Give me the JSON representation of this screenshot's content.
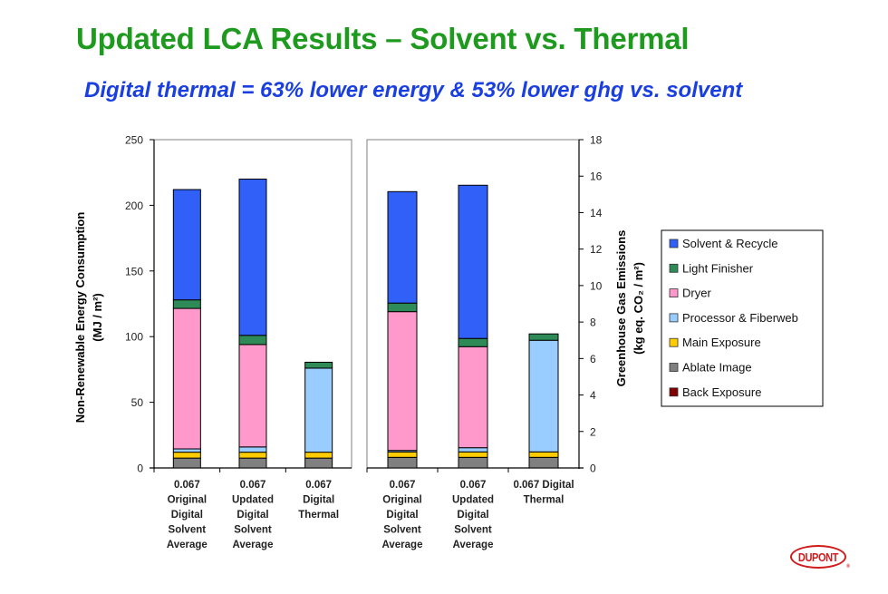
{
  "slide": {
    "title": "Updated LCA Results – Solvent vs. Thermal",
    "subtitle": "Digital thermal = 63% lower energy & 53% lower ghg vs. solvent",
    "logo_text": "DUPONT",
    "logo_mark": "®"
  },
  "colors": {
    "title": "#1e9a1e",
    "subtitle": "#1a3fe0",
    "logo": "#d01c1c"
  },
  "legend": {
    "position": "right",
    "items": [
      {
        "name": "Solvent & Recycle",
        "color": "#3060f8"
      },
      {
        "name": "Light Finisher",
        "color": "#2e8b57"
      },
      {
        "name": "Dryer",
        "color": "#ff99cc"
      },
      {
        "name": "Processor & Fiberweb",
        "color": "#99ccff"
      },
      {
        "name": "Main Exposure",
        "color": "#ffcc00"
      },
      {
        "name": "Ablate Image",
        "color": "#808080"
      },
      {
        "name": "Back Exposure",
        "color": "#800000"
      }
    ]
  },
  "chart_data": [
    {
      "type": "bar",
      "stacked": true,
      "title": "",
      "xlabel": "",
      "ylabel": "Non-Renewable Energy Consumption",
      "ylabel_unit": "(MJ / m²)",
      "ylim": [
        0,
        250
      ],
      "yticks": [
        0,
        50,
        100,
        150,
        200,
        250
      ],
      "grid": false,
      "categories": [
        [
          "0.067",
          "Original",
          "Digital",
          "Solvent",
          "Average"
        ],
        [
          "0.067",
          "Updated",
          "Digital",
          "Solvent",
          "Average"
        ],
        [
          "0.067",
          "Digital",
          "Thermal"
        ]
      ],
      "series": [
        {
          "name": "Back Exposure",
          "values": [
            0,
            0,
            0
          ]
        },
        {
          "name": "Ablate Image",
          "values": [
            7.5,
            7.5,
            7.5
          ]
        },
        {
          "name": "Main Exposure",
          "values": [
            4.5,
            4.5,
            4.5
          ]
        },
        {
          "name": "Processor & Fiberweb",
          "values": [
            2.5,
            4,
            64
          ]
        },
        {
          "name": "Dryer",
          "values": [
            107,
            78,
            0
          ]
        },
        {
          "name": "Light Finisher",
          "values": [
            6.5,
            7,
            4.5
          ]
        },
        {
          "name": "Solvent & Recycle",
          "values": [
            84,
            119,
            0
          ]
        }
      ]
    },
    {
      "type": "bar",
      "stacked": true,
      "title": "",
      "xlabel": "",
      "ylabel": "Greenhouse Gas Emissions",
      "ylabel_unit": "(kg eq. CO₂ / m²)",
      "ylim": [
        0,
        18
      ],
      "yticks": [
        0,
        2,
        4,
        6,
        8,
        10,
        12,
        14,
        16,
        18
      ],
      "grid": false,
      "categories": [
        [
          "0.067",
          "Original",
          "Digital",
          "Solvent",
          "Average"
        ],
        [
          "0.067",
          "Updated",
          "Digital",
          "Solvent",
          "Average"
        ],
        [
          "0.067 Digital",
          "Thermal"
        ]
      ],
      "series": [
        {
          "name": "Back Exposure",
          "values": [
            0,
            0,
            0
          ]
        },
        {
          "name": "Ablate Image",
          "values": [
            0.58,
            0.58,
            0.58
          ]
        },
        {
          "name": "Main Exposure",
          "values": [
            0.3,
            0.3,
            0.3
          ]
        },
        {
          "name": "Processor & Fiberweb",
          "values": [
            0.08,
            0.23,
            6.12
          ]
        },
        {
          "name": "Dryer",
          "values": [
            7.61,
            5.54,
            0
          ]
        },
        {
          "name": "Light Finisher",
          "values": [
            0.47,
            0.45,
            0.35
          ]
        },
        {
          "name": "Solvent & Recycle",
          "values": [
            6.11,
            8.4,
            0
          ]
        }
      ]
    }
  ]
}
